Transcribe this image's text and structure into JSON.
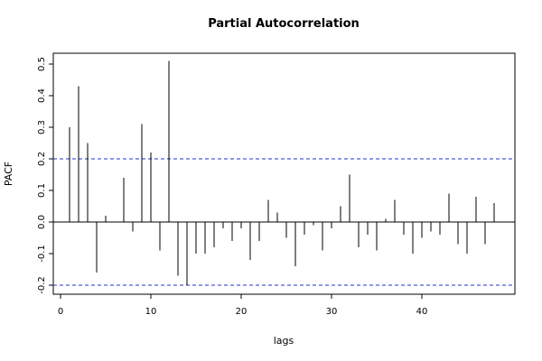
{
  "chart_data": {
    "type": "bar",
    "title": "Partial Autocorrelation",
    "xlabel": "lags",
    "ylabel": "PACF",
    "xlim": [
      0,
      49
    ],
    "ylim": [
      -0.22,
      0.54
    ],
    "x_ticks": [
      0,
      10,
      20,
      30,
      40
    ],
    "x_tick_labels": [
      "0",
      "10",
      "20",
      "30",
      "40"
    ],
    "y_ticks": [
      -0.2,
      -0.1,
      0.0,
      0.1,
      0.2,
      0.3,
      0.4,
      0.5
    ],
    "y_tick_labels": [
      "-0.2",
      "-0.1",
      "0.0",
      "0.1",
      "0.2",
      "0.3",
      "0.4",
      "0.5"
    ],
    "confidence_band": [
      -0.2,
      0.2
    ],
    "confidence_color": "#2233cc",
    "grid": false,
    "lags": [
      1,
      2,
      3,
      4,
      5,
      6,
      7,
      8,
      9,
      10,
      11,
      12,
      13,
      14,
      15,
      16,
      17,
      18,
      19,
      20,
      21,
      22,
      23,
      24,
      25,
      26,
      27,
      28,
      29,
      30,
      31,
      32,
      33,
      34,
      35,
      36,
      37,
      38,
      39,
      40,
      41,
      42,
      43,
      44,
      45,
      46,
      47,
      48
    ],
    "values": [
      0.3,
      0.43,
      0.25,
      -0.16,
      0.02,
      0.0,
      0.14,
      -0.03,
      0.31,
      0.22,
      -0.09,
      0.51,
      -0.17,
      -0.2,
      -0.1,
      -0.1,
      -0.08,
      -0.02,
      -0.06,
      -0.02,
      -0.12,
      -0.06,
      0.07,
      0.03,
      -0.05,
      -0.14,
      -0.04,
      -0.01,
      -0.09,
      -0.02,
      0.05,
      0.15,
      -0.08,
      -0.04,
      -0.09,
      0.01,
      0.07,
      -0.04,
      -0.1,
      -0.05,
      -0.03,
      -0.04,
      0.09,
      -0.07,
      -0.1,
      0.08,
      -0.07,
      0.06
    ]
  }
}
